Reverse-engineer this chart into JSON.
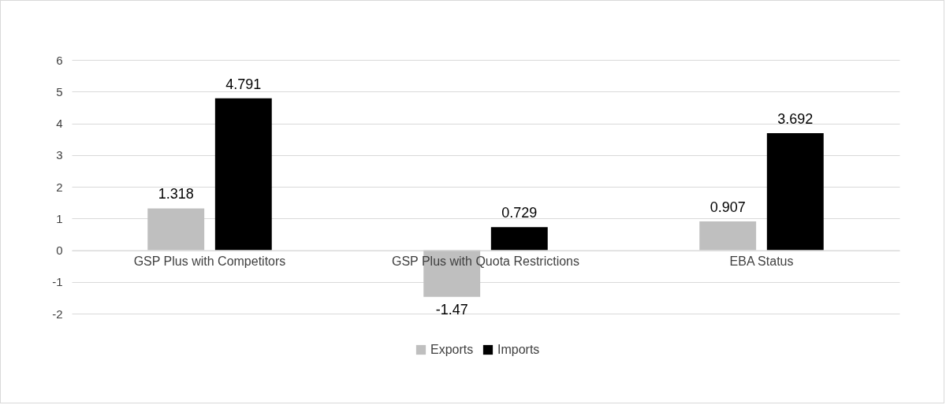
{
  "chart_data": {
    "type": "bar",
    "categories": [
      "GSP Plus with Competitors",
      "GSP Plus with Quota Restrictions",
      "EBA Status"
    ],
    "series": [
      {
        "name": "Exports",
        "color": "#bfbfbf",
        "values": [
          1.318,
          -1.47,
          0.907
        ]
      },
      {
        "name": "Imports",
        "color": "#000000",
        "values": [
          4.791,
          0.729,
          3.692
        ]
      }
    ],
    "ylim": [
      -2,
      6
    ],
    "yticks": [
      -2,
      -1,
      0,
      1,
      2,
      3,
      4,
      5,
      6
    ],
    "grid": "y",
    "legend": "bottom",
    "data_labels": true
  }
}
